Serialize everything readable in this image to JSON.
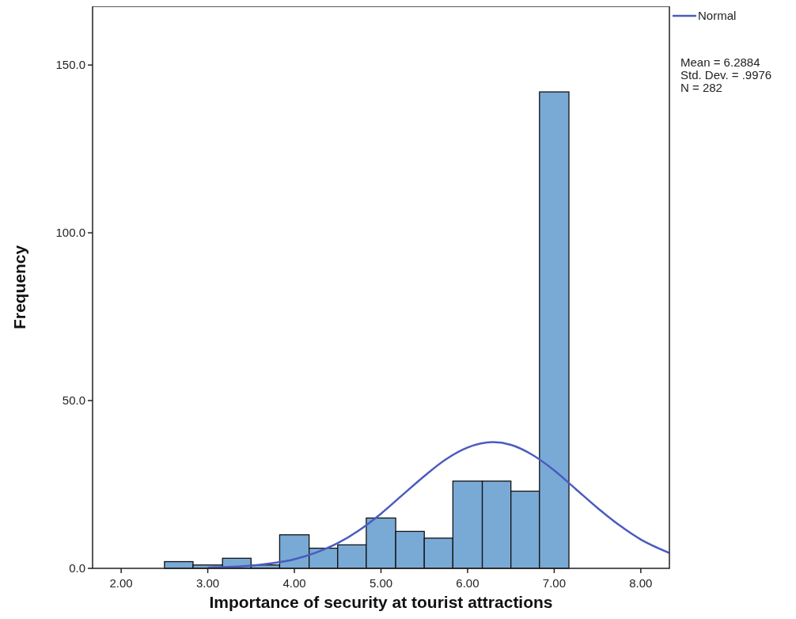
{
  "chart_data": {
    "type": "histogram",
    "xlabel": "Importance of security at tourist attractions",
    "ylabel": "Frequency",
    "bins": [
      2.5,
      2.83,
      3.17,
      3.5,
      3.83,
      4.17,
      4.5,
      4.83,
      5.17,
      5.5,
      5.83,
      6.17,
      6.5,
      6.83,
      7.17
    ],
    "values": [
      2,
      1,
      3,
      1,
      10,
      6,
      7,
      15,
      11,
      9,
      26,
      26,
      23,
      142
    ],
    "color": "#79aad6",
    "series": [
      {
        "name": "Normal",
        "type": "line",
        "color": "#4a5cbe",
        "x": [
          3,
          3.5,
          4,
          4.25,
          4.5,
          4.75,
          5,
          5.25,
          5.5,
          5.75,
          6,
          6.29,
          6.5,
          6.75,
          7,
          7.25,
          7.5,
          7.75,
          8,
          8.33
        ],
        "values": [
          0.2,
          0.8,
          2.7,
          4.7,
          7.5,
          11.4,
          16.3,
          21.9,
          27.5,
          32.5,
          36,
          37.6,
          36.8,
          33.8,
          29.2,
          23.6,
          18,
          12.9,
          8.6,
          4.6
        ]
      }
    ],
    "xlim": [
      1.67,
      8.33
    ],
    "ylim": [
      0,
      167.5
    ],
    "xticks": [
      {
        "value": 2,
        "label": "2.00"
      },
      {
        "value": 3,
        "label": "3.00"
      },
      {
        "value": 4,
        "label": "4.00"
      },
      {
        "value": 5,
        "label": "5.00"
      },
      {
        "value": 6,
        "label": "6.00"
      },
      {
        "value": 7,
        "label": "7.00"
      },
      {
        "value": 8,
        "label": "8.00"
      }
    ],
    "yticks": [
      {
        "value": 0,
        "label": "0.0"
      },
      {
        "value": 50,
        "label": "50.0"
      },
      {
        "value": 100,
        "label": "100.0"
      },
      {
        "value": 150,
        "label": "150.0"
      }
    ],
    "legend": "top right",
    "annotations": [
      "Mean = 6.2884",
      "Std. Dev. = .9976",
      "N = 282"
    ]
  }
}
